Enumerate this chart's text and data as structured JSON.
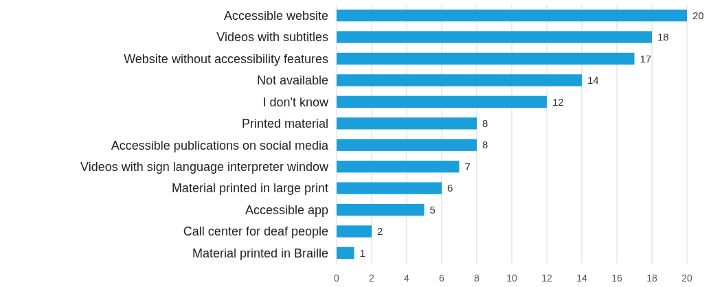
{
  "chart_data": {
    "type": "bar",
    "orientation": "horizontal",
    "categories": [
      "Accessible website",
      "Videos with subtitles",
      "Website without accessibility features",
      "Not available",
      "I don't know",
      "Printed material",
      "Accessible publications on social media",
      "Videos with sign language interpreter window",
      "Material printed in large print",
      "Accessible app",
      "Call center for deaf people",
      "Material printed in Braille"
    ],
    "values": [
      20,
      18,
      17,
      14,
      12,
      8,
      8,
      7,
      6,
      5,
      2,
      1
    ],
    "color": "#1b9fda",
    "xlim": [
      0,
      20
    ],
    "xticks": [
      0,
      2,
      4,
      6,
      8,
      10,
      12,
      14,
      16,
      18,
      20
    ],
    "grid": "x",
    "data_labels": true
  }
}
